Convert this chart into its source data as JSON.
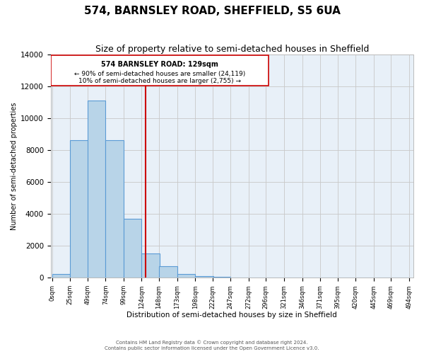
{
  "title": "574, BARNSLEY ROAD, SHEFFIELD, S5 6UA",
  "subtitle": "Size of property relative to semi-detached houses in Sheffield",
  "xlabel": "Distribution of semi-detached houses by size in Sheffield",
  "ylabel": "Number of semi-detached properties",
  "annotation_title": "574 BARNSLEY ROAD: 129sqm",
  "annotation_line2": "← 90% of semi-detached houses are smaller (24,119)",
  "annotation_line3": "10% of semi-detached houses are larger (2,755) →",
  "property_sqm": 129,
  "bar_left_edges": [
    0,
    25,
    49,
    74,
    99,
    124,
    148,
    173,
    198,
    222,
    247,
    272,
    296,
    321,
    346,
    371,
    395,
    420,
    445,
    469
  ],
  "bar_heights": [
    220,
    8600,
    11100,
    8600,
    3700,
    1500,
    700,
    220,
    100,
    55,
    30,
    0,
    0,
    0,
    0,
    0,
    0,
    0,
    0,
    0
  ],
  "bin_width": 25,
  "xtick_labels": [
    "0sqm",
    "25sqm",
    "49sqm",
    "74sqm",
    "99sqm",
    "124sqm",
    "148sqm",
    "173sqm",
    "198sqm",
    "222sqm",
    "247sqm",
    "272sqm",
    "296sqm",
    "321sqm",
    "346sqm",
    "371sqm",
    "395sqm",
    "420sqm",
    "445sqm",
    "469sqm",
    "494sqm"
  ],
  "xtick_positions": [
    0,
    25,
    49,
    74,
    99,
    124,
    148,
    173,
    198,
    222,
    247,
    272,
    296,
    321,
    346,
    371,
    395,
    420,
    445,
    469,
    494
  ],
  "ylim": [
    0,
    14000
  ],
  "yticks": [
    0,
    2000,
    4000,
    6000,
    8000,
    10000,
    12000,
    14000
  ],
  "bar_color": "#b8d4e8",
  "bar_edge_color": "#5b9bd5",
  "red_line_color": "#cc0000",
  "grid_color": "#c8c8c8",
  "background_color": "#e8f0f8",
  "footer_text": "Contains HM Land Registry data © Crown copyright and database right 2024.\nContains public sector information licensed under the Open Government Licence v3.0.",
  "title_fontsize": 11,
  "subtitle_fontsize": 9,
  "figwidth": 6.0,
  "figheight": 5.0,
  "dpi": 100
}
